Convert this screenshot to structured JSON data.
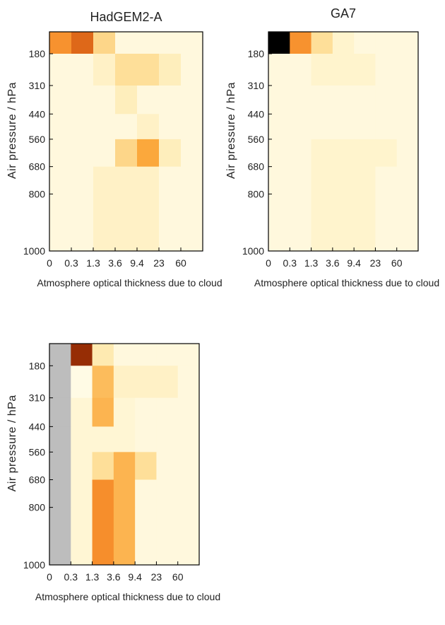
{
  "chart_data": [
    {
      "type": "heatmap",
      "title": "HadGEM2-A",
      "xlabel": "Atmosphere optical thickness due to cloud",
      "ylabel": "Air pressure / hPa",
      "x_ticks": [
        "0",
        "0.3",
        "1.3",
        "3.6",
        "9.4",
        "23",
        "60"
      ],
      "y_ticks": [
        "180",
        "310",
        "440",
        "560",
        "680",
        "800",
        "1000"
      ],
      "values": [
        [
          0.6,
          0.75,
          0.3,
          0.05,
          0.05,
          0.05,
          0.05
        ],
        [
          0.05,
          0.05,
          0.12,
          0.25,
          0.25,
          0.15,
          0.05
        ],
        [
          0.05,
          0.05,
          0.05,
          0.15,
          0.05,
          0.05,
          0.05
        ],
        [
          0.05,
          0.05,
          0.05,
          0.05,
          0.12,
          0.05,
          0.05
        ],
        [
          0.05,
          0.05,
          0.05,
          0.3,
          0.5,
          0.15,
          0.05
        ],
        [
          0.05,
          0.05,
          0.12,
          0.12,
          0.12,
          0.05,
          0.05
        ],
        [
          0.05,
          0.05,
          0.12,
          0.12,
          0.12,
          0.05,
          0.05
        ]
      ]
    },
    {
      "type": "heatmap",
      "title": "GA7",
      "xlabel": "Atmosphere optical thickness due to cloud",
      "ylabel": "Air pressure / hPa",
      "x_ticks": [
        "0",
        "0.3",
        "1.3",
        "3.6",
        "9.4",
        "23",
        "60"
      ],
      "y_ticks": [
        "180",
        "310",
        "440",
        "560",
        "680",
        "800",
        "1000"
      ],
      "values": [
        [
          1.0,
          0.6,
          0.25,
          0.1,
          0.05,
          0.05,
          0.05
        ],
        [
          0.05,
          0.05,
          0.1,
          0.1,
          0.1,
          0.05,
          0.05
        ],
        [
          0.05,
          0.05,
          0.05,
          0.05,
          0.05,
          0.05,
          0.05
        ],
        [
          0.05,
          0.05,
          0.05,
          0.05,
          0.05,
          0.05,
          0.05
        ],
        [
          0.05,
          0.05,
          0.1,
          0.1,
          0.1,
          0.1,
          0.05
        ],
        [
          0.05,
          0.05,
          0.1,
          0.1,
          0.1,
          0.05,
          0.05
        ],
        [
          0.05,
          0.05,
          0.1,
          0.1,
          0.1,
          0.05,
          0.05
        ]
      ]
    },
    {
      "type": "heatmap",
      "title": "",
      "xlabel": "Atmosphere optical thickness due to cloud",
      "ylabel": "Air pressure / hPa",
      "x_ticks": [
        "0",
        "0.3",
        "1.3",
        "3.6",
        "9.4",
        "23",
        "60"
      ],
      "y_ticks": [
        "180",
        "310",
        "440",
        "560",
        "680",
        "800",
        "1000"
      ],
      "missing_value_color": "#bdbdbd",
      "values": [
        [
          null,
          0.88,
          0.18,
          0.05,
          0.05,
          0.05,
          0.05
        ],
        [
          null,
          0.02,
          0.42,
          0.12,
          0.12,
          0.12,
          0.05
        ],
        [
          null,
          0.08,
          0.45,
          0.08,
          0.05,
          0.05,
          0.05
        ],
        [
          null,
          0.08,
          0.08,
          0.08,
          0.05,
          0.05,
          0.05
        ],
        [
          null,
          0.08,
          0.25,
          0.45,
          0.25,
          0.05,
          0.05
        ],
        [
          null,
          0.08,
          0.62,
          0.45,
          0.05,
          0.05,
          0.05
        ],
        [
          null,
          0.08,
          0.62,
          0.45,
          0.05,
          0.05,
          0.05
        ]
      ]
    }
  ]
}
